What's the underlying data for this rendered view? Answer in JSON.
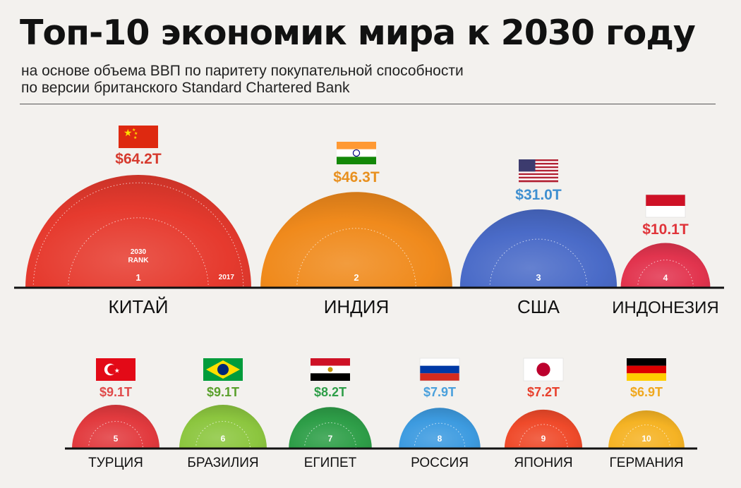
{
  "header": {
    "title": "Топ-10 экономик мира к 2030 году",
    "subtitle_line1": "на основе объема ВВП по паритету покупательной способности",
    "subtitle_line2": "по версии британского Standard Chartered Bank"
  },
  "legend": {
    "rank_label_line1": "2030",
    "rank_label_line2": "RANK",
    "year_label": "2017"
  },
  "chart_data": {
    "type": "bubble",
    "unit": "$ trillion (PPP GDP)",
    "items": [
      {
        "rank": 1,
        "country": "КИТАЙ",
        "value": 64.2,
        "label": "$64.2T",
        "color": "#e63a2e",
        "label_color": "#d63a2e",
        "flag": "china-flag"
      },
      {
        "rank": 2,
        "country": "ИНДИЯ",
        "value": 46.3,
        "label": "$46.3T",
        "color": "#f08a1c",
        "label_color": "#e8901f",
        "flag": "india-flag"
      },
      {
        "rank": 3,
        "country": "США",
        "value": 31.0,
        "label": "$31.0T",
        "color": "#4a6bc8",
        "label_color": "#3f8fd0",
        "flag": "usa-flag"
      },
      {
        "rank": 4,
        "country": "ИНДОНЕЗИЯ",
        "value": 10.1,
        "label": "$10.1T",
        "color": "#e2344e",
        "label_color": "#e0343a",
        "flag": "indonesia-flag"
      },
      {
        "rank": 5,
        "country": "ТУРЦИЯ",
        "value": 9.1,
        "label": "$9.1T",
        "color": "#e23a3e",
        "label_color": "#e04a4a",
        "flag": "turkey-flag"
      },
      {
        "rank": 6,
        "country": "БРАЗИЛИЯ",
        "value": 9.1,
        "label": "$9.1T",
        "color": "#8cc63f",
        "label_color": "#5aa02c",
        "flag": "brazil-flag"
      },
      {
        "rank": 7,
        "country": "ЕГИПЕТ",
        "value": 8.2,
        "label": "$8.2T",
        "color": "#2e9e48",
        "label_color": "#2e9e48",
        "flag": "egypt-flag"
      },
      {
        "rank": 8,
        "country": "РОССИЯ",
        "value": 7.9,
        "label": "$7.9T",
        "color": "#3d9be0",
        "label_color": "#4aa0dc",
        "flag": "russia-flag"
      },
      {
        "rank": 9,
        "country": "ЯПОНИЯ",
        "value": 7.2,
        "label": "$7.2T",
        "color": "#ef4a2a",
        "label_color": "#e8402c",
        "flag": "japan-flag"
      },
      {
        "rank": 10,
        "country": "ГЕРМАНИЯ",
        "value": 6.9,
        "label": "$6.9T",
        "color": "#f5b324",
        "label_color": "#f0a81e",
        "flag": "germany-flag"
      }
    ]
  }
}
